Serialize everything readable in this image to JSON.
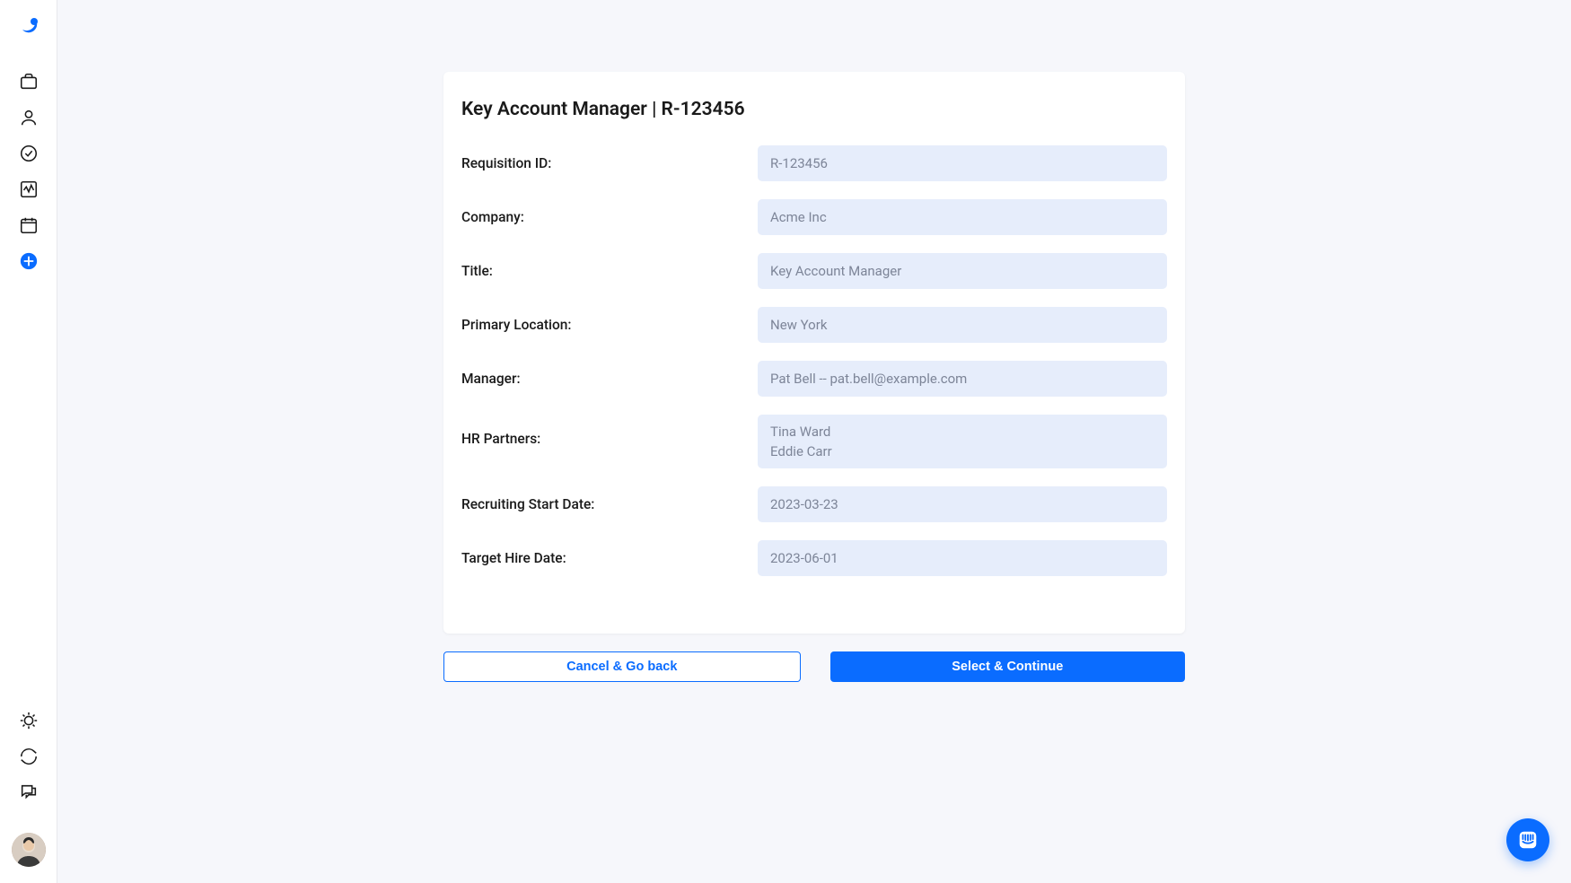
{
  "colors": {
    "brand": "#0a6cff",
    "page_bg": "#f6f7fb",
    "card_bg": "#ffffff",
    "field_bg": "#e6edfb",
    "field_text": "#7d8598",
    "text": "#1a1a1a",
    "sidebar_border": "#e8e8ec"
  },
  "sidebar": {
    "nav_top": [
      "briefcase-icon",
      "person-icon",
      "check-circle-icon",
      "activity-icon",
      "calendar-icon",
      "plus-circle-icon"
    ],
    "nav_bottom": [
      "settings-icon",
      "refresh-icon",
      "chat-icon"
    ]
  },
  "card": {
    "title": "Key Account Manager | R-123456",
    "fields": [
      {
        "label": "Requisition ID:",
        "value": "R-123456"
      },
      {
        "label": "Company:",
        "value": "Acme Inc"
      },
      {
        "label": "Title:",
        "value": "Key Account Manager"
      },
      {
        "label": "Primary Location:",
        "value": "New York"
      },
      {
        "label": "Manager:",
        "value": "Pat Bell -- pat.bell@example.com"
      },
      {
        "label": "HR Partners:",
        "values": [
          "Tina Ward",
          "Eddie Carr"
        ],
        "multi": true
      },
      {
        "label": "Recruiting Start Date:",
        "value": "2023-03-23"
      },
      {
        "label": "Target Hire Date:",
        "value": "2023-06-01"
      }
    ]
  },
  "buttons": {
    "cancel": "Cancel & Go back",
    "continue": "Select & Continue"
  }
}
